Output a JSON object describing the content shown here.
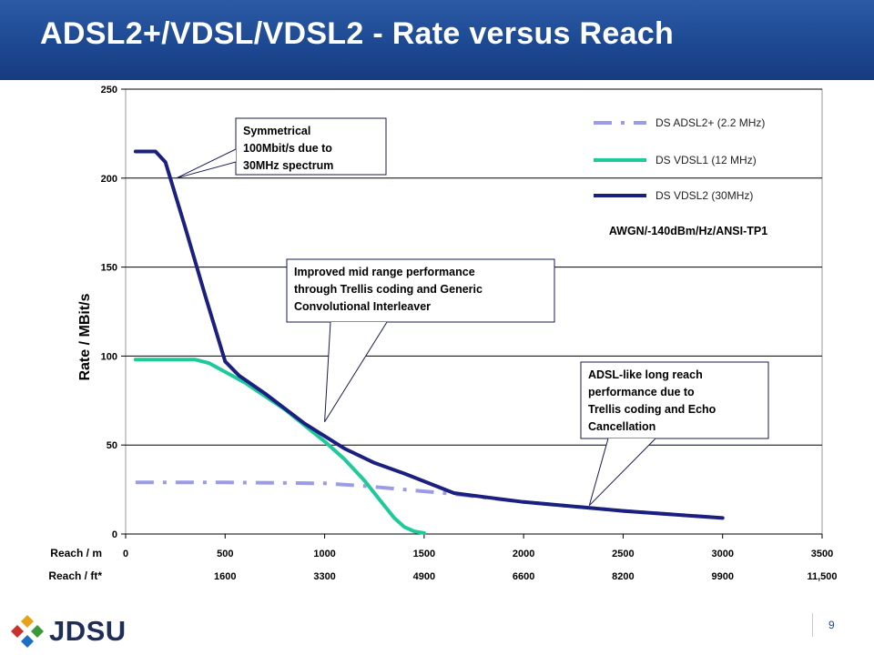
{
  "slide": {
    "title": "ADSL2+/VDSL/VDSL2 - Rate versus Reach",
    "page_number": "9",
    "logo_text": "JDSU"
  },
  "chart_data": {
    "type": "line",
    "title": "",
    "ylabel": "Rate / MBit/s",
    "xlabel_m": "Reach / m",
    "xlabel_ft": "Reach / ft*",
    "xlim": [
      0,
      3500
    ],
    "ylim": [
      0,
      250
    ],
    "x_ticks": [
      "0",
      "500",
      "1000",
      "1500",
      "2000",
      "2500",
      "3000",
      "3500"
    ],
    "ft_ticks": [
      "1600",
      "3300",
      "4900",
      "6600",
      "8200",
      "9900",
      "11,500"
    ],
    "y_ticks": [
      "0",
      "50",
      "100",
      "150",
      "200",
      "250"
    ],
    "grid": "horizontal",
    "legend_position": "top-right",
    "condition_label": "AWGN/-140dBm/Hz/ANSI-TP1",
    "series": [
      {
        "name": "DS ADSL2+ (2.2 MHz)",
        "color": "#9b9be8",
        "style": "dash-dot",
        "x": [
          50,
          500,
          1000,
          1200,
          1500,
          1650,
          2000,
          2500,
          3000
        ],
        "y": [
          29,
          29,
          28.5,
          27,
          24,
          22.5,
          18,
          13,
          9
        ]
      },
      {
        "name": "DS VDSL1 (12 MHz)",
        "color": "#1ec99a",
        "style": "solid",
        "x": [
          50,
          200,
          350,
          420,
          600,
          800,
          1000,
          1100,
          1200,
          1300,
          1350,
          1400,
          1450,
          1500
        ],
        "y": [
          98,
          98,
          98,
          96,
          85,
          70,
          52,
          42,
          30,
          16,
          9,
          4,
          1.5,
          0.5
        ]
      },
      {
        "name": "DS VDSL2 (30MHz)",
        "color": "#1a1f80",
        "style": "solid",
        "x": [
          50,
          150,
          200,
          300,
          400,
          500,
          570,
          700,
          900,
          1100,
          1250,
          1400,
          1650,
          2000,
          2500,
          3000
        ],
        "y": [
          215,
          215,
          209,
          172,
          134,
          97,
          89,
          79,
          62,
          48,
          40,
          34,
          23,
          18,
          13,
          9
        ]
      }
    ],
    "annotations": [
      {
        "text": "Symmetrical 100Mbit/s due to 30MHz spectrum",
        "lines": [
          "Symmetrical",
          "100Mbit/s due to",
          "30MHz spectrum"
        ],
        "point": [
          255,
          200
        ]
      },
      {
        "text": "Improved mid range performance through Trellis coding and Generic Convolutional Interleaver",
        "lines": [
          "Improved mid range performance",
          "through Trellis coding and Generic",
          "Convolutional Interleaver"
        ],
        "point": [
          1000,
          63
        ]
      },
      {
        "text": "ADSL-like long reach performance due to Trellis coding and Echo Cancellation",
        "lines": [
          "ADSL-like long reach",
          "performance due to",
          "Trellis coding and Echo",
          "Cancellation"
        ],
        "point": [
          2330,
          16
        ]
      }
    ]
  }
}
